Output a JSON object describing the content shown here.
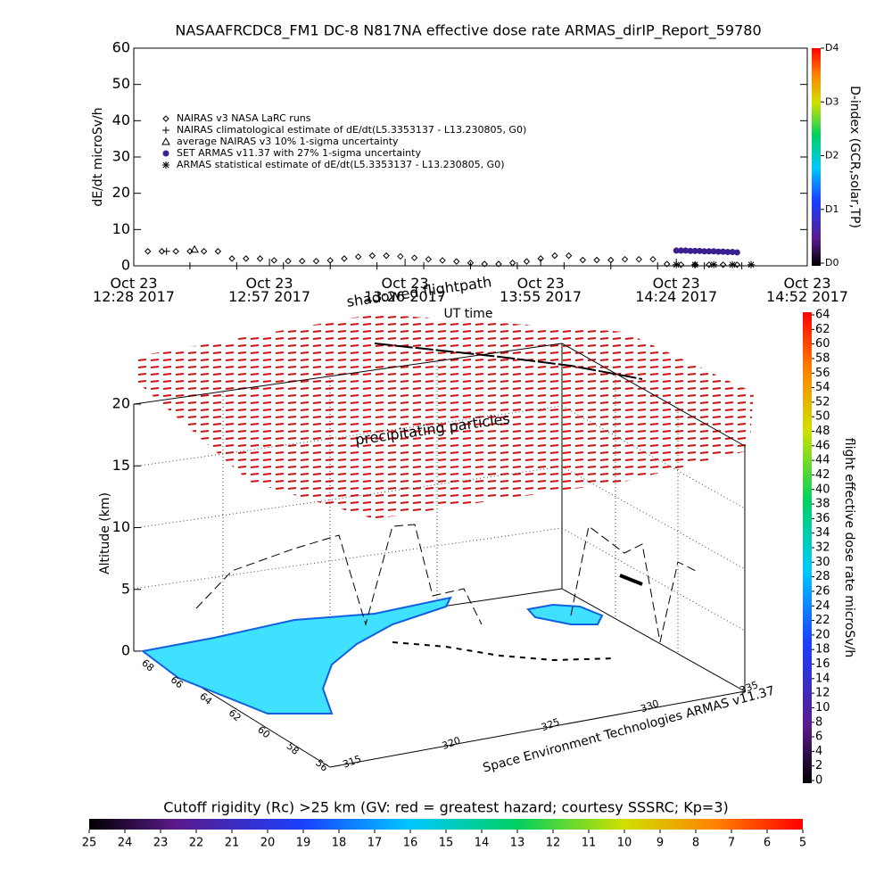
{
  "chart_data": [
    {
      "type": "line",
      "title": "NASAAFRCDC8_FM1 DC-8    N817NA effective dose rate ARMAS_dirIP_Report_59780",
      "ylabel": "dE/dt microSv/h",
      "ylim": [
        0,
        60
      ],
      "yticks": [
        0,
        10,
        20,
        30,
        40,
        50,
        60
      ],
      "xlim": [
        748,
        892
      ],
      "xticks": [
        {
          "value": 748,
          "label": "Oct 23 12:28 2017"
        },
        {
          "value": 777,
          "label": "Oct 23 12:57 2017"
        },
        {
          "value": 806,
          "label": "Oct 23 13:26 2017"
        },
        {
          "value": 835,
          "label": "Oct 23 13:55 2017"
        },
        {
          "value": 864,
          "label": "Oct 23 14:24 2017"
        },
        {
          "value": 892,
          "label": "Oct 23 14:52 2017"
        }
      ],
      "series": [
        {
          "name": "NAIRAS v3 NASA LaRC runs",
          "marker": "diamond",
          "color": "#000000",
          "x": [
            751,
            754,
            757,
            760,
            763,
            766,
            769,
            772,
            775,
            778,
            781,
            784,
            787,
            790,
            793,
            796,
            799,
            802,
            805,
            808,
            811,
            814,
            817,
            820,
            823,
            826,
            829,
            832,
            835,
            838,
            841,
            844,
            847,
            850,
            853,
            856,
            859,
            862,
            865,
            868,
            871,
            874,
            877
          ],
          "values": [
            4,
            4,
            4,
            4,
            4,
            4,
            2,
            2,
            2,
            1.5,
            1.3,
            1.3,
            1.3,
            1.5,
            2,
            2.5,
            2.8,
            2.8,
            2.6,
            2.2,
            1.8,
            1.5,
            1.2,
            0.8,
            0.5,
            0.5,
            0.8,
            1.2,
            2,
            2.8,
            2.8,
            1.6,
            1.6,
            1.6,
            1.8,
            1.8,
            1.8,
            0.5,
            0.3,
            0.3,
            0.3,
            0.3,
            0.3
          ]
        },
        {
          "name": "NAIRAS climatological estimate of dE/dt(L5.3353137 - L13.230805, G0)",
          "marker": "plus",
          "color": "#000000",
          "x": [
            755,
            760,
            770,
            780,
            790,
            800,
            810,
            820,
            830,
            840,
            850,
            860,
            870,
            878
          ],
          "values": [
            4,
            0,
            0,
            0,
            0,
            0,
            0,
            0,
            0,
            0,
            0,
            0,
            0,
            0
          ]
        },
        {
          "name": "average NAIRAS v3 10% 1-sigma uncertainty",
          "marker": "triangle",
          "color": "#000000",
          "x": [
            761
          ],
          "values": [
            4.5
          ]
        },
        {
          "name": "SET ARMAS v11.37 with 27% 1-sigma uncertainty",
          "marker": "circle",
          "color": "#3a1f8f",
          "x": [
            864,
            865,
            866,
            867,
            868,
            869,
            870,
            871,
            872,
            873,
            874,
            875,
            876,
            877
          ],
          "values": [
            4.2,
            4.2,
            4.2,
            4.1,
            4.1,
            4.1,
            4,
            4,
            4,
            3.9,
            3.9,
            3.8,
            3.8,
            3.7
          ]
        },
        {
          "name": "ARMAS statistical estimate of dE/dt(L5.3353137 - L13.230805, G0)",
          "marker": "asterisk",
          "color": "#000000",
          "x": [
            864,
            868,
            872,
            876,
            880
          ],
          "values": [
            0.3,
            0.3,
            0.3,
            0.3,
            0.3
          ]
        }
      ],
      "colorbar": {
        "label": "D-index (GCR,solar,TP)",
        "lim": [
          0,
          4
        ],
        "ticks": [
          {
            "value": 0,
            "label": "D0"
          },
          {
            "value": 1,
            "label": "D1"
          },
          {
            "value": 2,
            "label": "D2"
          },
          {
            "value": 3,
            "label": "D3"
          },
          {
            "value": 4,
            "label": "D4"
          }
        ]
      }
    },
    {
      "type": "surface3d",
      "annotations": [
        "shadowed flightpath",
        "precipitating particles",
        "UT time"
      ],
      "zlabel": "Altitude (km)",
      "zlim": [
        0,
        20
      ],
      "zticks": [
        0,
        5,
        10,
        15,
        20
      ],
      "yticks": [
        68,
        66,
        64,
        62,
        60,
        58,
        56
      ],
      "xticks": [
        315,
        320,
        325,
        330,
        335
      ],
      "credit": "Space Environment Technologies ARMAS v11.37",
      "colorbar": {
        "label": "flight effective dose rate microSv/h",
        "lim": [
          0,
          64
        ],
        "ticks": [
          0,
          2,
          4,
          6,
          8,
          10,
          12,
          14,
          16,
          18,
          20,
          22,
          24,
          26,
          28,
          30,
          32,
          34,
          36,
          38,
          40,
          42,
          44,
          46,
          48,
          50,
          52,
          54,
          56,
          58,
          60,
          62,
          64
        ]
      }
    },
    {
      "type": "colorbar",
      "title": "Cutoff rigidity (Rc) >25 km (GV: red = greatest hazard; courtesy SSSRC; Kp=3)",
      "lim": [
        25,
        5
      ],
      "ticks": [
        25,
        24,
        23,
        22,
        21,
        20,
        19,
        18,
        17,
        16,
        15,
        14,
        13,
        12,
        11,
        10,
        9,
        8,
        7,
        6,
        5
      ]
    }
  ]
}
